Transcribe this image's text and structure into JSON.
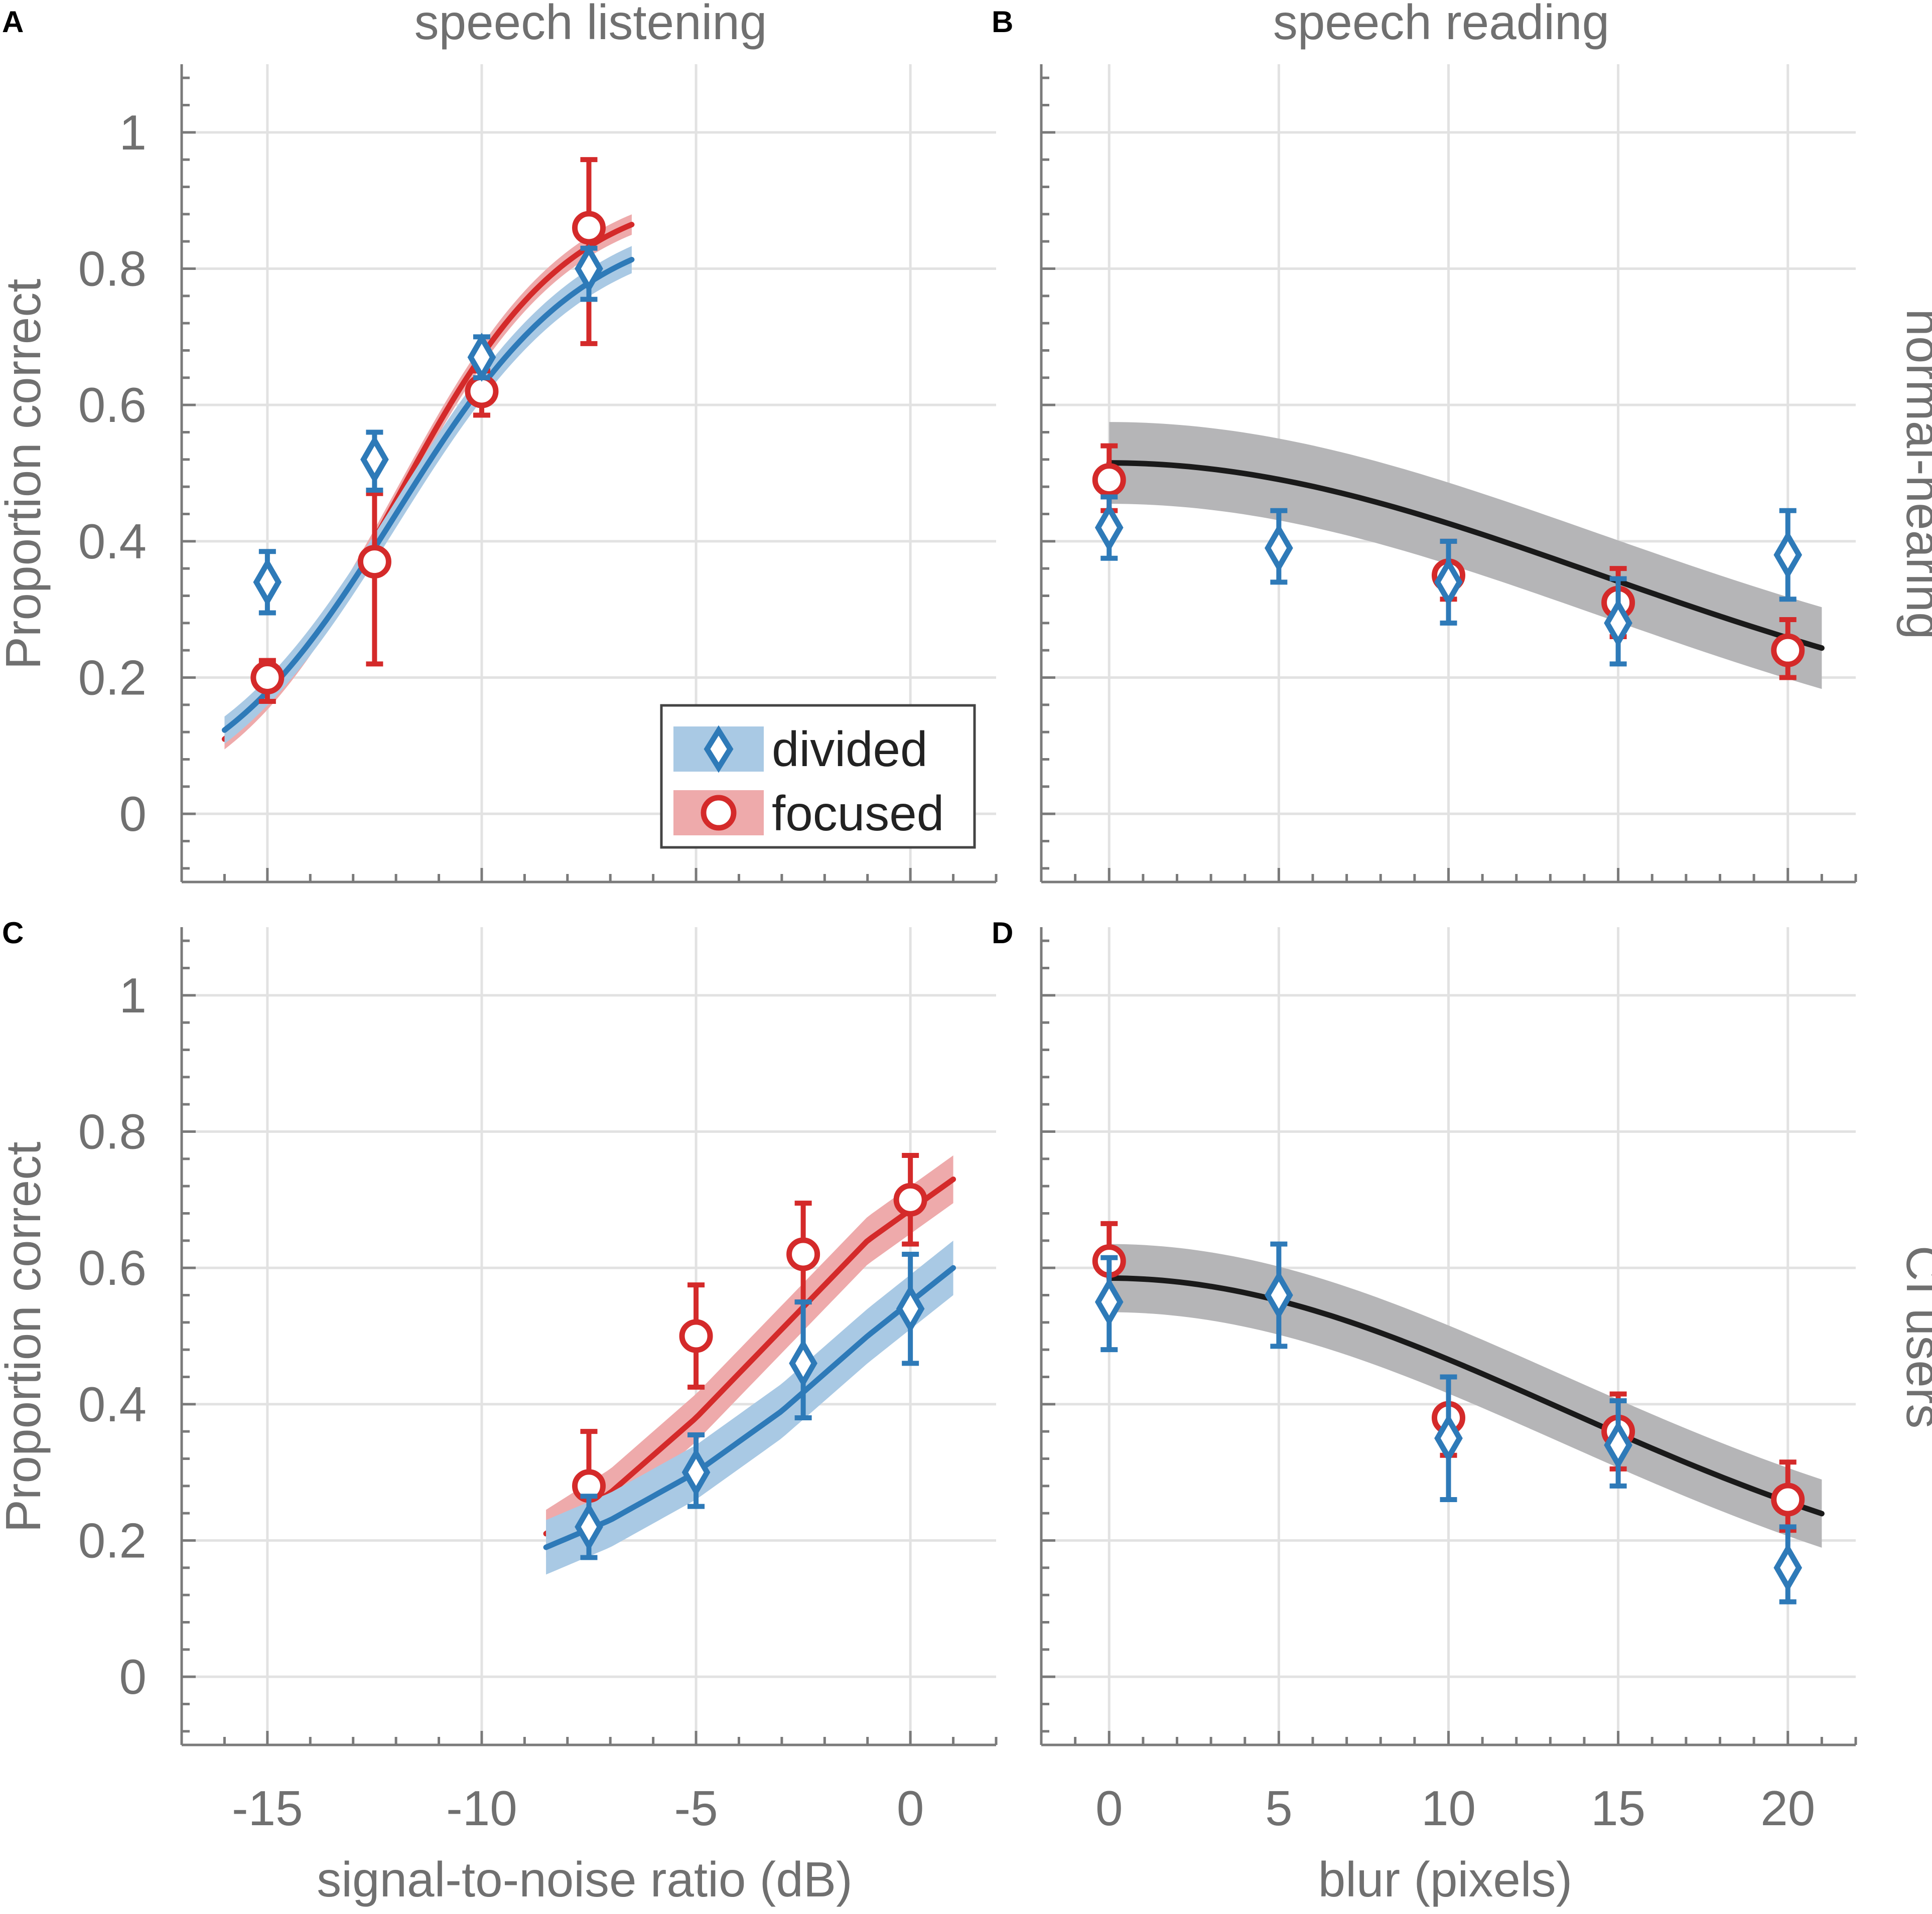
{
  "figure": {
    "columns": [
      "speech listening",
      "speech reading"
    ],
    "rows": [
      "normal-hearing",
      "CI users"
    ],
    "ylabel": "Proportion correct",
    "legend": {
      "divided": {
        "label": "divided",
        "color": "#2e7ab8",
        "band": "#a9c9e4",
        "marker": "diamond"
      },
      "focused": {
        "label": "focused",
        "color": "#d42a2a",
        "band": "#eeaaab",
        "marker": "circle"
      },
      "common": {
        "color": "#1a1a1a",
        "band": "#b5b5b7"
      }
    },
    "grid_color": "#e2e2e2",
    "axis_color": "#7a7a7a"
  },
  "chart_data": [
    {
      "panel": "A",
      "type": "line",
      "title": "speech listening",
      "row_label": "",
      "xlabel": "",
      "ylabel": "Proportion correct",
      "xlim": [
        -17,
        2
      ],
      "ylim": [
        -0.1,
        1.1
      ],
      "xticks": [
        -15,
        -10,
        -5,
        0
      ],
      "yticks": [
        0,
        0.2,
        0.4,
        0.6,
        0.8,
        1
      ],
      "xticklabels": [],
      "yticklabels": [
        "0",
        "0.2",
        "0.4",
        "0.6",
        "0.8",
        "1"
      ],
      "grid": true,
      "legend_position": "bottom-right",
      "series": [
        {
          "name": "divided",
          "x": [
            -15,
            -12.5,
            -10,
            -7.5
          ],
          "y": [
            0.34,
            0.52,
            0.67,
            0.8
          ],
          "err_low": [
            0.045,
            0.045,
            0.03,
            0.045
          ],
          "err_high": [
            0.045,
            0.04,
            0.03,
            0.03
          ],
          "fit": {
            "alpha": -12,
            "beta": 2.2,
            "lapse": 0.12,
            "x_range": [
              -16,
              -6.5
            ],
            "band": 0.02
          }
        },
        {
          "name": "focused",
          "x": [
            -15,
            -12.5,
            -10,
            -7.5
          ],
          "y": [
            0.2,
            0.37,
            0.62,
            0.86
          ],
          "err_low": [
            0.035,
            0.15,
            0.035,
            0.17
          ],
          "err_high": [
            0.025,
            0.1,
            0.03,
            0.1
          ],
          "fit": {
            "alpha": -12,
            "beta": 2.0,
            "lapse": 0.08,
            "x_range": [
              -16,
              -6.5
            ],
            "band": 0.015
          }
        }
      ]
    },
    {
      "panel": "B",
      "type": "line",
      "title": "speech reading",
      "row_label": "normal-hearing",
      "xlabel": "",
      "ylabel": "",
      "xlim": [
        -2,
        22
      ],
      "ylim": [
        -0.1,
        1.1
      ],
      "xticks": [
        0,
        5,
        10,
        15,
        20
      ],
      "yticks": [
        0,
        0.2,
        0.4,
        0.6,
        0.8,
        1
      ],
      "xticklabels": [],
      "yticklabels": [],
      "grid": true,
      "series": [
        {
          "name": "divided",
          "x": [
            0,
            5,
            10,
            15,
            20
          ],
          "y": [
            0.42,
            0.39,
            0.34,
            0.28,
            0.38
          ],
          "err_low": [
            0.045,
            0.05,
            0.06,
            0.06,
            0.065
          ],
          "err_high": [
            0.045,
            0.055,
            0.06,
            0.065,
            0.065
          ]
        },
        {
          "name": "focused",
          "x": [
            0,
            10,
            15,
            20
          ],
          "y": [
            0.49,
            0.35,
            0.31,
            0.24
          ],
          "err_low": [
            0.045,
            0.035,
            0.05,
            0.04
          ],
          "err_high": [
            0.05,
            0.05,
            0.05,
            0.045
          ]
        },
        {
          "name": "common",
          "fit": {
            "type": "gaussian",
            "top": 0.515,
            "bottom": 0.1,
            "sigma": 14.4,
            "x_range": [
              0,
              21
            ],
            "band": 0.06
          }
        }
      ]
    },
    {
      "panel": "C",
      "type": "line",
      "title": "",
      "row_label": "",
      "xlabel": "signal-to-noise ratio (dB)",
      "ylabel": "Proportion correct",
      "xlim": [
        -17,
        2
      ],
      "ylim": [
        -0.1,
        1.1
      ],
      "xticks": [
        -15,
        -10,
        -5,
        0
      ],
      "yticks": [
        0,
        0.2,
        0.4,
        0.6,
        0.8,
        1
      ],
      "xticklabels": [
        "-15",
        "-10",
        "-5",
        "0"
      ],
      "yticklabels": [
        "0",
        "0.2",
        "0.4",
        "0.6",
        "0.8",
        "1"
      ],
      "grid": true,
      "series": [
        {
          "name": "divided",
          "x": [
            -7.5,
            -5,
            -2.5,
            0
          ],
          "y": [
            0.22,
            0.3,
            0.46,
            0.54
          ],
          "err_low": [
            0.045,
            0.05,
            0.08,
            0.08
          ],
          "err_high": [
            0.045,
            0.055,
            0.09,
            0.08
          ]
        },
        {
          "name": "focused",
          "x": [
            -7.5,
            -5,
            -2.5,
            0
          ],
          "y": [
            0.28,
            0.5,
            0.62,
            0.7
          ],
          "err_low": [
            0.05,
            0.075,
            0.07,
            0.065
          ],
          "err_high": [
            0.08,
            0.075,
            0.075,
            0.065
          ]
        }
      ],
      "fit_curves": [
        {
          "name": "divided",
          "points": [
            [
              -8.5,
              0.19
            ],
            [
              -7,
              0.23
            ],
            [
              -5,
              0.3
            ],
            [
              -3,
              0.39
            ],
            [
              -1,
              0.5
            ],
            [
              1,
              0.6
            ]
          ],
          "band": 0.04
        },
        {
          "name": "focused",
          "points": [
            [
              -8.5,
              0.21
            ],
            [
              -7,
              0.27
            ],
            [
              -5,
              0.38
            ],
            [
              -3,
              0.51
            ],
            [
              -1,
              0.64
            ],
            [
              1,
              0.73
            ]
          ],
          "band": 0.035
        }
      ]
    },
    {
      "panel": "D",
      "type": "line",
      "title": "",
      "row_label": "CI users",
      "xlabel": "blur (pixels)",
      "ylabel": "",
      "xlim": [
        -2,
        22
      ],
      "ylim": [
        -0.1,
        1.1
      ],
      "xticks": [
        0,
        5,
        10,
        15,
        20
      ],
      "yticks": [
        0,
        0.2,
        0.4,
        0.6,
        0.8,
        1
      ],
      "xticklabels": [
        "0",
        "5",
        "10",
        "15",
        "20"
      ],
      "yticklabels": [],
      "grid": true,
      "series": [
        {
          "name": "divided",
          "x": [
            0,
            5,
            10,
            15,
            20
          ],
          "y": [
            0.55,
            0.56,
            0.35,
            0.34,
            0.16
          ],
          "err_low": [
            0.07,
            0.075,
            0.09,
            0.06,
            0.05
          ],
          "err_high": [
            0.065,
            0.075,
            0.09,
            0.065,
            0.06
          ]
        },
        {
          "name": "focused",
          "x": [
            0,
            10,
            15,
            20
          ],
          "y": [
            0.61,
            0.38,
            0.36,
            0.26
          ],
          "err_low": [
            0.055,
            0.055,
            0.055,
            0.045
          ],
          "err_high": [
            0.055,
            0.06,
            0.055,
            0.055
          ]
        },
        {
          "name": "common",
          "fit": {
            "type": "gaussian",
            "top": 0.585,
            "bottom": 0.1,
            "sigma": 13.3,
            "x_range": [
              0,
              21
            ],
            "band": 0.05
          }
        }
      ]
    }
  ]
}
